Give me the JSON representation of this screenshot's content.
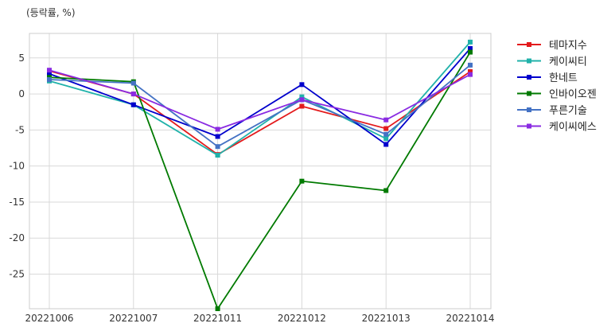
{
  "chart_data": {
    "type": "line",
    "title": "",
    "unit_label": "(등락률, %)",
    "xlabel": "",
    "ylabel": "",
    "categories": [
      "20221006",
      "20221007",
      "20221011",
      "20221012",
      "20221013",
      "20221014"
    ],
    "ylim": [
      -29.8,
      8.4
    ],
    "yticks": [
      5,
      0,
      -5,
      -10,
      -15,
      -20,
      -25
    ],
    "grid": true,
    "legend_position": "outside-right-top",
    "series": [
      {
        "name": "테마지수",
        "color": "#e31a1c",
        "values": [
          3.2,
          0.0,
          -8.4,
          -1.7,
          -4.8,
          3.1
        ]
      },
      {
        "name": "케이씨티",
        "color": "#20b2aa",
        "values": [
          1.8,
          -1.5,
          -8.5,
          -0.4,
          -6.2,
          7.2
        ]
      },
      {
        "name": "한네트",
        "color": "#0000cc",
        "values": [
          2.8,
          -1.5,
          -5.9,
          1.3,
          -7.0,
          6.3
        ]
      },
      {
        "name": "인바이오젠",
        "color": "#007a00",
        "values": [
          2.3,
          1.7,
          -29.8,
          -12.1,
          -13.4,
          5.8
        ]
      },
      {
        "name": "푸른기술",
        "color": "#4472c4",
        "values": [
          2.0,
          1.5,
          -7.3,
          -0.8,
          -5.6,
          4.0
        ]
      },
      {
        "name": "케이씨에스",
        "color": "#8a2be2",
        "values": [
          3.3,
          0.0,
          -4.9,
          -0.8,
          -3.6,
          2.7
        ]
      }
    ]
  }
}
